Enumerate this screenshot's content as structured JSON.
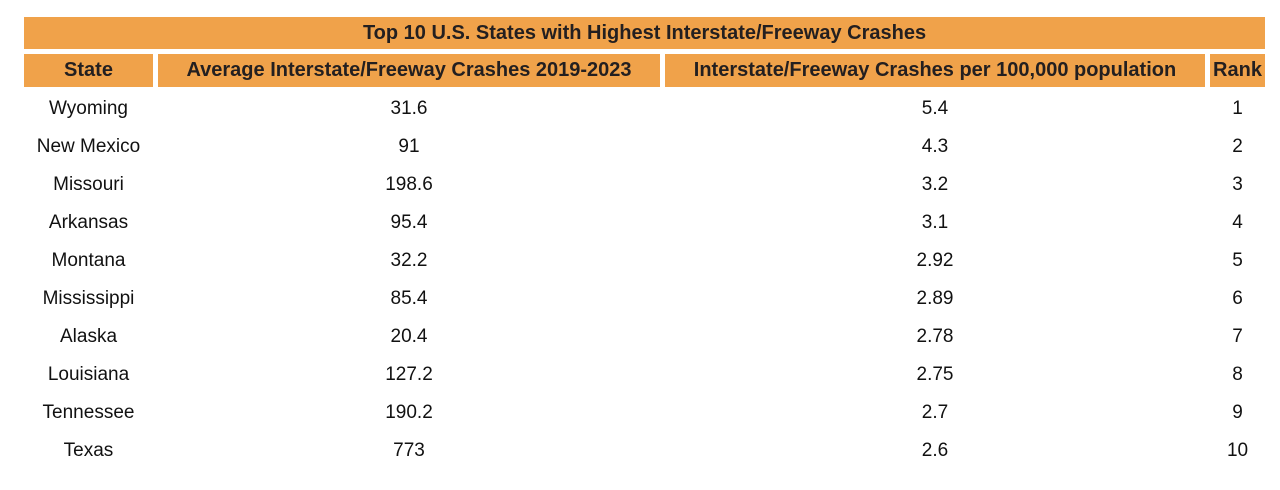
{
  "chart_data": {
    "type": "table",
    "title": "Top 10 U.S. States with Highest Interstate/Freeway Crashes",
    "columns": [
      "State",
      "Average Interstate/Freeway Crashes 2019-2023",
      "Interstate/Freeway Crashes per 100,000 population",
      "Rank"
    ],
    "rows": [
      [
        "Wyoming",
        "31.6",
        "5.4",
        "1"
      ],
      [
        "New Mexico",
        "91",
        "4.3",
        "2"
      ],
      [
        "Missouri",
        "198.6",
        "3.2",
        "3"
      ],
      [
        "Arkansas",
        "95.4",
        "3.1",
        "4"
      ],
      [
        "Montana",
        "32.2",
        "2.92",
        "5"
      ],
      [
        "Mississippi",
        "85.4",
        "2.89",
        "6"
      ],
      [
        "Alaska",
        "20.4",
        "2.78",
        "7"
      ],
      [
        "Louisiana",
        "127.2",
        "2.75",
        "8"
      ],
      [
        "Tennessee",
        "190.2",
        "2.7",
        "9"
      ],
      [
        "Texas",
        "773",
        "2.6",
        "10"
      ]
    ]
  },
  "colors": {
    "header_bg": "#F0A24A",
    "header_text": "#231F20",
    "body_text": "#111111",
    "page_bg": "#FFFFFF"
  }
}
